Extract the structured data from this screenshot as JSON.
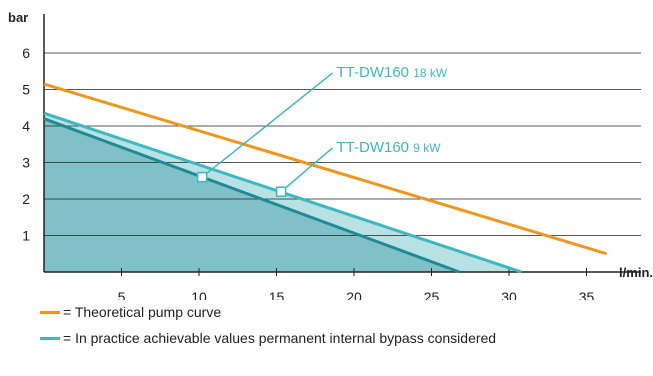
{
  "chart_data": {
    "type": "line",
    "ylabel": "bar",
    "xlabel": "l/min.",
    "xlim": [
      0,
      38
    ],
    "ylim": [
      0,
      7
    ],
    "xticks": [
      5,
      10,
      15,
      20,
      25,
      30,
      35
    ],
    "yticks": [
      1,
      2,
      3,
      4,
      5,
      6
    ],
    "grid": "horizontal",
    "series": [
      {
        "key": "theoretical",
        "color": "#f0961e",
        "x": [
          0,
          36.3
        ],
        "y": [
          5.15,
          0.5
        ]
      },
      {
        "key": "dw160_18",
        "color": "#3db8c0",
        "x": [
          0,
          30.8
        ],
        "y": [
          4.35,
          0
        ]
      },
      {
        "key": "dw160_9",
        "color": "#1f8a96",
        "x": [
          0,
          26.8
        ],
        "y": [
          4.2,
          0
        ]
      }
    ],
    "annotations": [
      {
        "key": "dw160_18",
        "model": "TT-DW160",
        "power": "18 kW",
        "point": [
          10.2,
          2.6
        ],
        "label_at": [
          19,
          5.45
        ]
      },
      {
        "key": "dw160_9",
        "model": "TT-DW160",
        "power": "9 kW",
        "point": [
          15.3,
          2.2
        ],
        "label_at": [
          19,
          3.4
        ]
      }
    ],
    "colors": {
      "area_dark": "#7fc1c6",
      "area_light": "#b7e1e3",
      "axis": "#222222",
      "grid": "#222222",
      "label": "#3db8c0"
    }
  },
  "legend": {
    "theoretical": "= Theoretical pump curve",
    "practice": "= In practice achievable values permanent internal bypass considered",
    "practice_prefix": "=",
    "practice_rest": "In practice achievable values permanent internal bypass considered"
  }
}
